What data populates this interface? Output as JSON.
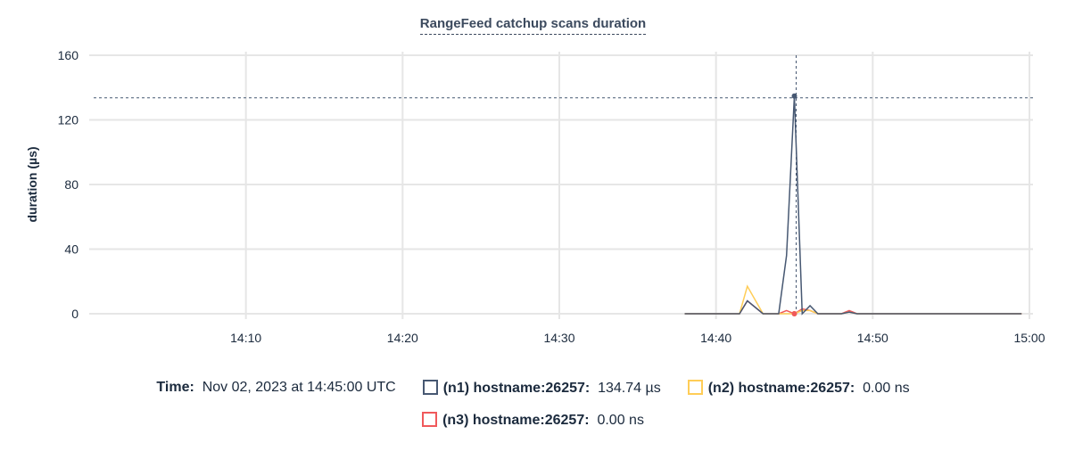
{
  "chart_data": {
    "type": "line",
    "title": "RangeFeed catchup scans duration",
    "ylabel": "duration (µs)",
    "xlabel": "",
    "xlim": [
      "14:00",
      "15:00"
    ],
    "ylim": [
      0,
      160
    ],
    "yticks": [
      "0",
      "40",
      "80",
      "120",
      "160"
    ],
    "xticks": [
      "14:10",
      "14:20",
      "14:30",
      "14:40",
      "14:50",
      "15:00"
    ],
    "grid": true,
    "x": [
      "14:38:00",
      "14:41:30",
      "14:42:00",
      "14:43:00",
      "14:44:00",
      "14:44:30",
      "14:45:00",
      "14:45:30",
      "14:46:00",
      "14:46:30",
      "14:48:00",
      "14:48:30",
      "14:49:00",
      "14:59:30"
    ],
    "series": [
      {
        "name": "(n1) hostname:26257",
        "color": "#475872",
        "values": [
          0,
          0,
          8,
          0,
          0,
          36,
          134.74,
          0,
          5,
          0,
          0,
          1,
          0,
          0
        ]
      },
      {
        "name": "(n2) hostname:26257",
        "color": "#ffcd57",
        "values": [
          0,
          0,
          17,
          0,
          0,
          0,
          0,
          2,
          2,
          0,
          0,
          1,
          0,
          0
        ]
      },
      {
        "name": "(n3) hostname:26257",
        "color": "#f0595b",
        "values": [
          0,
          0,
          8,
          0,
          0,
          2,
          0,
          3,
          2,
          0,
          0,
          2,
          0,
          0
        ]
      }
    ],
    "hover": {
      "time": "14:45:00",
      "value": 134.74
    }
  },
  "legend": {
    "time_label": "Time:",
    "time_value": "Nov 02, 2023 at 14:45:00 UTC",
    "items": [
      {
        "label": "(n1) hostname:26257:",
        "value": "134.74 µs"
      },
      {
        "label": "(n2) hostname:26257:",
        "value": "0.00 ns"
      },
      {
        "label": "(n3) hostname:26257:",
        "value": "0.00 ns"
      }
    ]
  }
}
